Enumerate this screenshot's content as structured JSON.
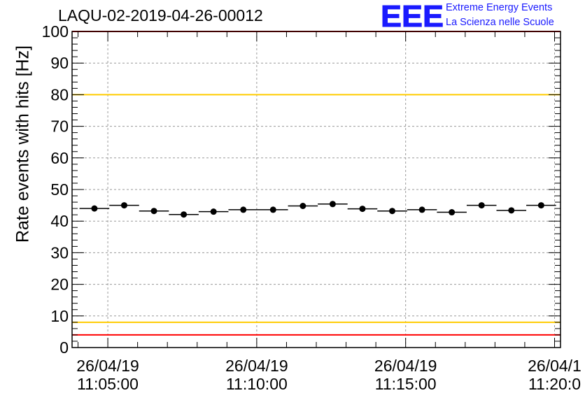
{
  "chart_data": {
    "type": "scatter",
    "title": "LAQU-02-2019-04-26-00012",
    "ylabel": "Rate events with hits [Hz]",
    "xlabel": "",
    "ylim": [
      0,
      100
    ],
    "yticks": [
      0,
      10,
      20,
      30,
      40,
      50,
      60,
      70,
      80,
      90,
      100
    ],
    "xlim_minutes": [
      -1.2,
      15.2
    ],
    "xticks": [
      {
        "minutes": 0,
        "date": "26/04/19",
        "time": "11:05:00"
      },
      {
        "minutes": 5,
        "date": "26/04/19",
        "time": "11:10:00"
      },
      {
        "minutes": 10,
        "date": "26/04/19",
        "time": "11:15:00"
      },
      {
        "minutes": 15,
        "date": "26/04/1",
        "time": "11:20:0"
      }
    ],
    "series": [
      {
        "name": "Rate events with hits",
        "x_minutes": [
          -0.45,
          0.55,
          1.55,
          2.55,
          3.55,
          4.55,
          5.55,
          6.55,
          7.55,
          8.55,
          9.55,
          10.55,
          11.55,
          12.55,
          13.55,
          14.55
        ],
        "bin_half_width_minutes": 0.5,
        "values": [
          44.0,
          45.0,
          43.2,
          42.1,
          43.0,
          43.6,
          43.6,
          44.8,
          45.4,
          43.9,
          43.2,
          43.6,
          42.8,
          45.0,
          43.4,
          45.0
        ]
      }
    ],
    "reference_lines": [
      {
        "value": 100,
        "color": "#ff0000"
      },
      {
        "value": 80,
        "color": "#ffcc00"
      },
      {
        "value": 8,
        "color": "#ffcc00"
      },
      {
        "value": 4,
        "color": "#ff0000"
      }
    ],
    "grid": true
  },
  "header": {
    "logo_text": "EEE",
    "org_line1": "Extreme Energy Events",
    "org_line2": "La Scienza nelle Scuole",
    "brand_color": "#1a1aff"
  }
}
